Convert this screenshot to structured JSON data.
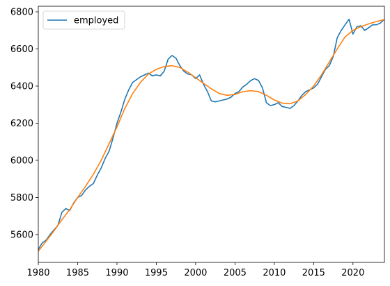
{
  "chart_data": {
    "type": "line",
    "title": "",
    "xlabel": "",
    "ylabel": "",
    "xlim": [
      1980,
      2024
    ],
    "ylim": [
      5450,
      6830
    ],
    "x_ticks": [
      1980,
      1985,
      1990,
      1995,
      2000,
      2005,
      2010,
      2015,
      2020
    ],
    "y_ticks": [
      5600,
      5800,
      6000,
      6200,
      6400,
      6600,
      6800
    ],
    "grid": false,
    "legend": {
      "placement": "top-left",
      "entries": [
        "employed"
      ]
    },
    "colors": {
      "employed": "#1f77b4",
      "trend": "#ff7f0e"
    },
    "series": [
      {
        "name": "employed",
        "color": "#1f77b4",
        "x": [
          1980.0,
          1980.5,
          1981.0,
          1981.5,
          1982.0,
          1982.5,
          1983.0,
          1983.5,
          1984.0,
          1984.5,
          1985.0,
          1985.5,
          1986.0,
          1986.5,
          1987.0,
          1987.5,
          1988.0,
          1988.5,
          1989.0,
          1989.5,
          1990.0,
          1990.5,
          1991.0,
          1991.5,
          1992.0,
          1992.5,
          1993.0,
          1993.5,
          1994.0,
          1994.5,
          1995.0,
          1995.5,
          1996.0,
          1996.5,
          1997.0,
          1997.5,
          1998.0,
          1998.5,
          1999.0,
          1999.5,
          2000.0,
          2000.5,
          2001.0,
          2001.5,
          2002.0,
          2002.5,
          2003.0,
          2003.5,
          2004.0,
          2004.5,
          2005.0,
          2005.5,
          2006.0,
          2006.5,
          2007.0,
          2007.5,
          2008.0,
          2008.5,
          2009.0,
          2009.5,
          2010.0,
          2010.5,
          2011.0,
          2011.5,
          2012.0,
          2012.5,
          2013.0,
          2013.5,
          2014.0,
          2014.5,
          2015.0,
          2015.5,
          2016.0,
          2016.5,
          2017.0,
          2017.5,
          2018.0,
          2018.5,
          2019.0,
          2019.5,
          2020.0,
          2020.5,
          2021.0,
          2021.5,
          2022.0,
          2022.5,
          2023.0,
          2023.5,
          2024.0
        ],
        "values": [
          5520,
          5555,
          5570,
          5600,
          5625,
          5650,
          5720,
          5740,
          5730,
          5770,
          5800,
          5810,
          5840,
          5860,
          5875,
          5920,
          5960,
          6010,
          6050,
          6120,
          6200,
          6260,
          6330,
          6380,
          6420,
          6435,
          6450,
          6460,
          6470,
          6455,
          6460,
          6455,
          6480,
          6545,
          6565,
          6550,
          6510,
          6480,
          6465,
          6460,
          6440,
          6460,
          6410,
          6370,
          6320,
          6315,
          6320,
          6325,
          6330,
          6340,
          6360,
          6370,
          6395,
          6410,
          6430,
          6440,
          6430,
          6390,
          6310,
          6295,
          6300,
          6310,
          6290,
          6285,
          6280,
          6295,
          6320,
          6350,
          6370,
          6380,
          6390,
          6410,
          6450,
          6490,
          6510,
          6560,
          6660,
          6700,
          6730,
          6760,
          6680,
          6720,
          6725,
          6700,
          6715,
          6730,
          6730,
          6740,
          6760
        ]
      },
      {
        "name": "",
        "color": "#ff7f0e",
        "x": [
          1980.0,
          1981.0,
          1982.0,
          1983.0,
          1984.0,
          1985.0,
          1986.0,
          1987.0,
          1988.0,
          1989.0,
          1990.0,
          1991.0,
          1992.0,
          1993.0,
          1994.0,
          1995.0,
          1996.0,
          1997.0,
          1998.0,
          1999.0,
          2000.0,
          2001.0,
          2002.0,
          2003.0,
          2004.0,
          2005.0,
          2006.0,
          2007.0,
          2008.0,
          2009.0,
          2010.0,
          2011.0,
          2012.0,
          2013.0,
          2014.0,
          2015.0,
          2016.0,
          2017.0,
          2018.0,
          2019.0,
          2020.0,
          2021.0,
          2022.0,
          2023.0,
          2024.0
        ],
        "values": [
          5510,
          5565,
          5620,
          5680,
          5735,
          5800,
          5860,
          5925,
          6000,
          6090,
          6180,
          6280,
          6360,
          6420,
          6465,
          6490,
          6505,
          6510,
          6500,
          6475,
          6445,
          6415,
          6385,
          6360,
          6350,
          6355,
          6370,
          6375,
          6370,
          6350,
          6325,
          6308,
          6305,
          6320,
          6355,
          6400,
          6460,
          6530,
          6600,
          6665,
          6700,
          6720,
          6735,
          6748,
          6758
        ]
      }
    ]
  }
}
